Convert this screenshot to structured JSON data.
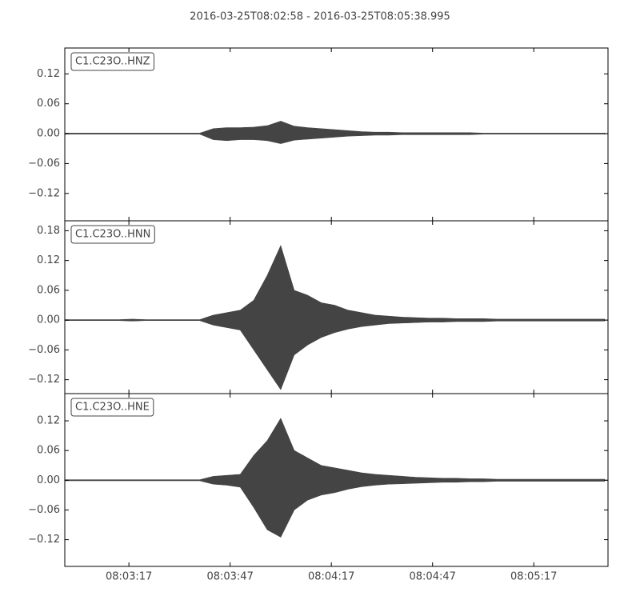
{
  "chart_data": {
    "type": "area",
    "title": "2016-03-25T08:02:58  -  2016-03-25T08:05:38.995",
    "x": [
      "08:02:58",
      "08:03:02",
      "08:03:06",
      "08:03:10",
      "08:03:14",
      "08:03:18",
      "08:03:22",
      "08:03:26",
      "08:03:30",
      "08:03:34",
      "08:03:38",
      "08:03:42",
      "08:03:46",
      "08:03:50",
      "08:03:54",
      "08:03:58",
      "08:04:02",
      "08:04:06",
      "08:04:10",
      "08:04:14",
      "08:04:18",
      "08:04:22",
      "08:04:26",
      "08:04:30",
      "08:04:34",
      "08:04:38",
      "08:04:42",
      "08:04:46",
      "08:04:50",
      "08:04:54",
      "08:04:58",
      "08:05:02",
      "08:05:06",
      "08:05:10",
      "08:05:14",
      "08:05:18",
      "08:05:22",
      "08:05:26",
      "08:05:30",
      "08:05:34",
      "08:05:38"
    ],
    "xlim": [
      "08:02:58",
      "08:05:38.995"
    ],
    "xticks": [
      "08:03:17",
      "08:03:47",
      "08:04:17",
      "08:04:47",
      "08:05:17"
    ],
    "color": "#444444",
    "panels": [
      {
        "label": "C1.C23O..HNZ",
        "ylim": [
          -0.175,
          0.172
        ],
        "yticks": [
          {
            "value": -0.12,
            "label": "−0.12"
          },
          {
            "value": -0.06,
            "label": "−0.06"
          },
          {
            "value": 0,
            "label": "0.00"
          },
          {
            "value": 0.06,
            "label": "0.06"
          },
          {
            "value": 0.12,
            "label": "0.12"
          }
        ],
        "upper": [
          0.001,
          0.001,
          0.001,
          0.001,
          0.001,
          0.001,
          0.001,
          0.001,
          0.001,
          0.001,
          0.001,
          0.01,
          0.012,
          0.012,
          0.013,
          0.016,
          0.025,
          0.015,
          0.012,
          0.01,
          0.008,
          0.006,
          0.004,
          0.003,
          0.003,
          0.002,
          0.002,
          0.002,
          0.002,
          0.002,
          0.002,
          0.001,
          0.001,
          0.001,
          0.001,
          0.001,
          0.001,
          0.001,
          0.001,
          0.001,
          0.001
        ],
        "lower": [
          -0.001,
          -0.001,
          -0.001,
          -0.001,
          -0.001,
          -0.001,
          -0.001,
          -0.001,
          -0.001,
          -0.001,
          -0.001,
          -0.012,
          -0.014,
          -0.012,
          -0.012,
          -0.014,
          -0.02,
          -0.013,
          -0.011,
          -0.009,
          -0.007,
          -0.005,
          -0.004,
          -0.003,
          -0.003,
          -0.002,
          -0.002,
          -0.002,
          -0.002,
          -0.002,
          -0.002,
          -0.001,
          -0.001,
          -0.001,
          -0.001,
          -0.001,
          -0.001,
          -0.001,
          -0.001,
          -0.001,
          -0.001
        ]
      },
      {
        "label": "C1.C23O..HNN",
        "ylim": [
          -0.148,
          0.2
        ],
        "yticks": [
          {
            "value": -0.12,
            "label": "−0.12"
          },
          {
            "value": -0.06,
            "label": "−0.06"
          },
          {
            "value": 0,
            "label": "0.00"
          },
          {
            "value": 0.06,
            "label": "0.06"
          },
          {
            "value": 0.12,
            "label": "0.12"
          },
          {
            "value": 0.18,
            "label": "0.18"
          }
        ],
        "upper": [
          0.001,
          0.001,
          0.001,
          0.001,
          0.001,
          0.002,
          0.001,
          0.001,
          0.001,
          0.001,
          0.001,
          0.01,
          0.015,
          0.02,
          0.04,
          0.09,
          0.15,
          0.06,
          0.05,
          0.035,
          0.03,
          0.02,
          0.015,
          0.01,
          0.008,
          0.006,
          0.005,
          0.004,
          0.004,
          0.003,
          0.003,
          0.003,
          0.002,
          0.002,
          0.002,
          0.002,
          0.002,
          0.002,
          0.002,
          0.002,
          0.002
        ],
        "lower": [
          -0.001,
          -0.001,
          -0.001,
          -0.001,
          -0.001,
          -0.002,
          -0.001,
          -0.001,
          -0.001,
          -0.001,
          -0.001,
          -0.01,
          -0.015,
          -0.02,
          -0.06,
          -0.1,
          -0.14,
          -0.07,
          -0.05,
          -0.035,
          -0.025,
          -0.018,
          -0.013,
          -0.01,
          -0.007,
          -0.006,
          -0.005,
          -0.004,
          -0.004,
          -0.003,
          -0.003,
          -0.003,
          -0.002,
          -0.002,
          -0.002,
          -0.002,
          -0.002,
          -0.002,
          -0.002,
          -0.002,
          -0.002
        ]
      },
      {
        "label": "C1.C23O..HNE",
        "ylim": [
          -0.174,
          0.175
        ],
        "yticks": [
          {
            "value": -0.12,
            "label": "−0.12"
          },
          {
            "value": -0.06,
            "label": "−0.06"
          },
          {
            "value": 0,
            "label": "0.00"
          },
          {
            "value": 0.06,
            "label": "0.06"
          },
          {
            "value": 0.12,
            "label": "0.12"
          }
        ],
        "upper": [
          0.001,
          0.001,
          0.001,
          0.001,
          0.001,
          0.001,
          0.001,
          0.001,
          0.001,
          0.001,
          0.001,
          0.008,
          0.01,
          0.012,
          0.05,
          0.08,
          0.125,
          0.06,
          0.045,
          0.03,
          0.025,
          0.02,
          0.015,
          0.012,
          0.01,
          0.008,
          0.006,
          0.005,
          0.004,
          0.004,
          0.003,
          0.003,
          0.002,
          0.002,
          0.002,
          0.002,
          0.002,
          0.002,
          0.002,
          0.002,
          0.002
        ],
        "lower": [
          -0.001,
          -0.001,
          -0.001,
          -0.001,
          -0.001,
          -0.001,
          -0.001,
          -0.001,
          -0.001,
          -0.001,
          -0.001,
          -0.008,
          -0.01,
          -0.014,
          -0.055,
          -0.1,
          -0.115,
          -0.06,
          -0.04,
          -0.03,
          -0.025,
          -0.018,
          -0.013,
          -0.01,
          -0.008,
          -0.007,
          -0.006,
          -0.005,
          -0.004,
          -0.004,
          -0.003,
          -0.003,
          -0.002,
          -0.002,
          -0.002,
          -0.002,
          -0.002,
          -0.002,
          -0.002,
          -0.002,
          -0.002
        ]
      }
    ]
  }
}
